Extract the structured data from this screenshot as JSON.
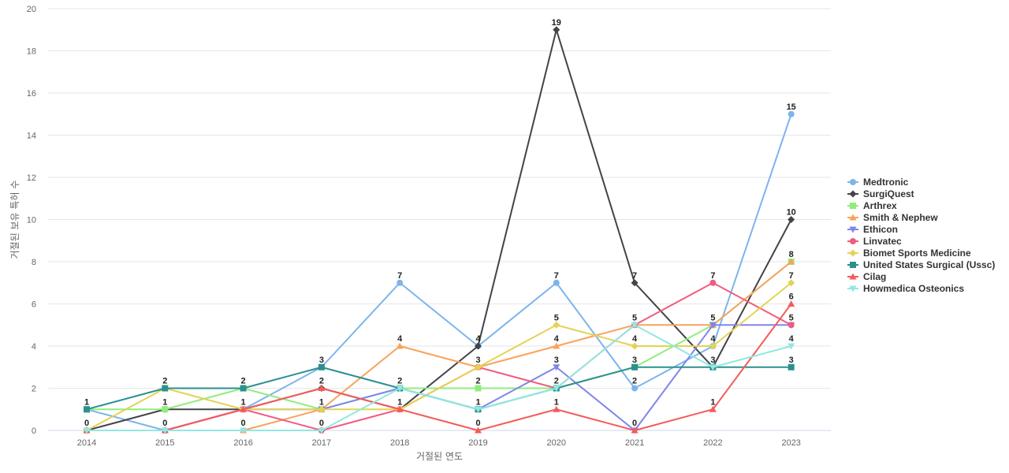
{
  "chart_data": {
    "type": "line",
    "title": "",
    "xlabel": "거절된 연도",
    "ylabel": "거절된 보유 특허 수",
    "x": [
      "2014",
      "2015",
      "2016",
      "2017",
      "2018",
      "2019",
      "2020",
      "2021",
      "2022",
      "2023"
    ],
    "ylim": [
      0,
      20
    ],
    "yticks": [
      0,
      2,
      4,
      6,
      8,
      10,
      12,
      14,
      16,
      18,
      20
    ],
    "grid": true,
    "legend_position": "right",
    "series": [
      {
        "name": "Medtronic",
        "color": "#7cb5ec",
        "marker": "circle",
        "values": [
          1,
          0,
          1,
          3,
          7,
          4,
          7,
          2,
          4,
          15
        ]
      },
      {
        "name": "SurgiQuest",
        "color": "#434348",
        "marker": "diamond",
        "values": [
          0,
          1,
          1,
          2,
          1,
          4,
          19,
          7,
          3,
          10
        ]
      },
      {
        "name": "Arthrex",
        "color": "#90ed7d",
        "marker": "square",
        "values": [
          1,
          1,
          2,
          1,
          2,
          2,
          2,
          3,
          5,
          8
        ]
      },
      {
        "name": "Smith & Nephew",
        "color": "#f7a35c",
        "marker": "triangle",
        "values": [
          0,
          0,
          0,
          1,
          4,
          3,
          4,
          5,
          5,
          8
        ]
      },
      {
        "name": "Ethicon",
        "color": "#8085e9",
        "marker": "triangle-down",
        "values": [
          0,
          0,
          1,
          1,
          2,
          1,
          3,
          0,
          5,
          5
        ]
      },
      {
        "name": "Linvatec",
        "color": "#f15c80",
        "marker": "circle",
        "values": [
          0,
          0,
          1,
          0,
          1,
          3,
          2,
          5,
          7,
          5
        ]
      },
      {
        "name": "Biomet Sports Medicine",
        "color": "#e4d354",
        "marker": "diamond",
        "values": [
          0,
          2,
          1,
          1,
          1,
          3,
          5,
          4,
          4,
          7
        ]
      },
      {
        "name": "United States Surgical (Ussc)",
        "color": "#2b908f",
        "marker": "square",
        "values": [
          1,
          2,
          2,
          3,
          2,
          1,
          2,
          3,
          3,
          3
        ]
      },
      {
        "name": "Cilag",
        "color": "#f45b5b",
        "marker": "triangle",
        "values": [
          0,
          0,
          1,
          2,
          1,
          0,
          1,
          0,
          1,
          6
        ]
      },
      {
        "name": "Howmedica Osteonics",
        "color": "#91e8e1",
        "marker": "triangle-down",
        "values": [
          0,
          0,
          0,
          0,
          2,
          1,
          2,
          5,
          3,
          4
        ]
      }
    ],
    "data_labels": {
      "2014": [
        {
          "text": "1",
          "series": "Medtronic",
          "value": 1
        },
        {
          "text": "0",
          "series": "SurgiQuest",
          "value": 0
        }
      ],
      "2015": [
        {
          "text": "2",
          "series": "United States Surgical (Ussc)",
          "value": 2
        },
        {
          "text": "1",
          "series": "Arthrex",
          "value": 1
        },
        {
          "text": "0",
          "series": "Medtronic",
          "value": 0
        }
      ],
      "2016": [
        {
          "text": "2",
          "series": "United States Surgical (Ussc)",
          "value": 2
        },
        {
          "text": "1",
          "series": "Medtronic",
          "value": 1
        },
        {
          "text": "0",
          "series": "Smith & Nephew",
          "value": 0
        }
      ],
      "2017": [
        {
          "text": "3",
          "series": "Medtronic",
          "value": 3
        },
        {
          "text": "2",
          "series": "SurgiQuest",
          "value": 2
        },
        {
          "text": "1",
          "series": "Arthrex",
          "value": 1
        },
        {
          "text": "0",
          "series": "Linvatec",
          "value": 0
        }
      ],
      "2018": [
        {
          "text": "7",
          "series": "Medtronic",
          "value": 7
        },
        {
          "text": "4",
          "series": "Smith & Nephew",
          "value": 4
        },
        {
          "text": "2",
          "series": "Arthrex",
          "value": 2
        },
        {
          "text": "1",
          "series": "SurgiQuest",
          "value": 1
        }
      ],
      "2019": [
        {
          "text": "4",
          "series": "Medtronic",
          "value": 4
        },
        {
          "text": "3",
          "series": "Smith & Nephew",
          "value": 3
        },
        {
          "text": "2",
          "series": "Arthrex",
          "value": 2
        },
        {
          "text": "1",
          "series": "Ethicon",
          "value": 1
        },
        {
          "text": "0",
          "series": "Cilag",
          "value": 0
        }
      ],
      "2020": [
        {
          "text": "19",
          "series": "SurgiQuest",
          "value": 19
        },
        {
          "text": "7",
          "series": "Medtronic",
          "value": 7
        },
        {
          "text": "5",
          "series": "Biomet Sports Medicine",
          "value": 5
        },
        {
          "text": "4",
          "series": "Smith & Nephew",
          "value": 4
        },
        {
          "text": "3",
          "series": "Ethicon",
          "value": 3
        },
        {
          "text": "2",
          "series": "Arthrex",
          "value": 2
        },
        {
          "text": "1",
          "series": "Cilag",
          "value": 1
        }
      ],
      "2021": [
        {
          "text": "7",
          "series": "SurgiQuest",
          "value": 7
        },
        {
          "text": "5",
          "series": "Smith & Nephew",
          "value": 5
        },
        {
          "text": "4",
          "series": "Biomet Sports Medicine",
          "value": 4
        },
        {
          "text": "3",
          "series": "Arthrex",
          "value": 3
        },
        {
          "text": "2",
          "series": "Medtronic",
          "value": 2
        },
        {
          "text": "0",
          "series": "Ethicon",
          "value": 0
        }
      ],
      "2022": [
        {
          "text": "7",
          "series": "Linvatec",
          "value": 7
        },
        {
          "text": "5",
          "series": "Arthrex",
          "value": 5
        },
        {
          "text": "4",
          "series": "Medtronic",
          "value": 4
        },
        {
          "text": "3",
          "series": "SurgiQuest",
          "value": 3
        },
        {
          "text": "1",
          "series": "Cilag",
          "value": 1
        }
      ],
      "2023": [
        {
          "text": "15",
          "series": "Medtronic",
          "value": 15
        },
        {
          "text": "10",
          "series": "SurgiQuest",
          "value": 10
        },
        {
          "text": "8",
          "series": "Arthrex",
          "value": 8
        },
        {
          "text": "7",
          "series": "Biomet Sports Medicine",
          "value": 7
        },
        {
          "text": "6",
          "series": "Cilag",
          "value": 6
        },
        {
          "text": "5",
          "series": "Ethicon",
          "value": 5
        },
        {
          "text": "4",
          "series": "Howmedica Osteonics",
          "value": 4
        },
        {
          "text": "3",
          "series": "United States Surgical (Ussc)",
          "value": 3
        }
      ]
    }
  }
}
